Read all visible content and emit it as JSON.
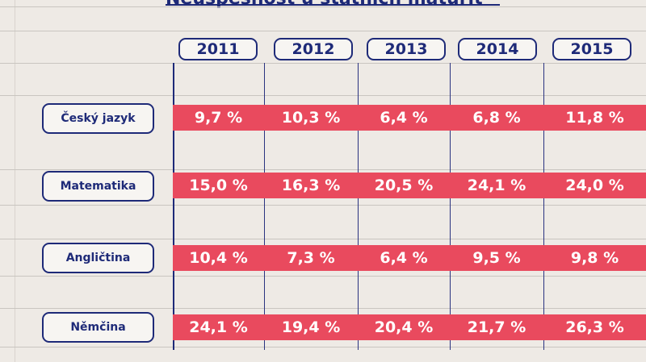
{
  "chart_data": {
    "type": "table",
    "title": "Neúspěšnost u státních maturit",
    "columns": [
      "2011",
      "2012",
      "2013",
      "2014",
      "2015"
    ],
    "rows": [
      {
        "label": "Český jazyk",
        "values": [
          "9,7 %",
          "10,3 %",
          "6,4 %",
          "6,8 %",
          "11,8 %"
        ]
      },
      {
        "label": "Matematika",
        "values": [
          "15,0 %",
          "16,3 %",
          "20,5 %",
          "24,1 %",
          "24,0 %"
        ]
      },
      {
        "label": "Angličtina",
        "values": [
          "10,4 %",
          "7,3 %",
          "6,4 %",
          "9,5 %",
          "9,8 %"
        ]
      },
      {
        "label": "Němčina",
        "values": [
          "24,1 %",
          "19,4 %",
          "20,4 %",
          "21,7 %",
          "26,3 %"
        ]
      }
    ]
  },
  "colors": {
    "ink": "#1e2a78",
    "bar": "#e94a5e",
    "paper": "#eeeae5"
  }
}
